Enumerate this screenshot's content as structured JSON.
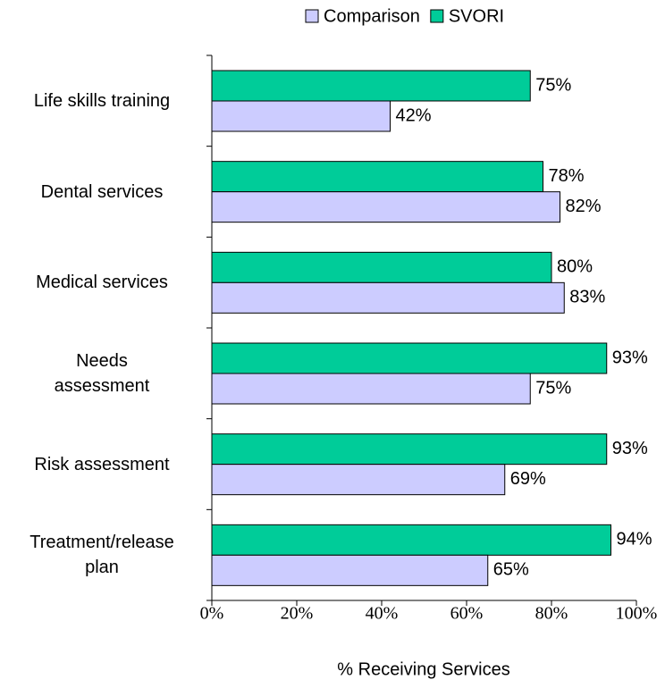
{
  "chart_data": {
    "type": "barh",
    "categories": [
      "Life skills training",
      "Dental services",
      "Medical services",
      "Needs\nassessment",
      "Risk assessment",
      "Treatment/release\nplan"
    ],
    "series": [
      {
        "name": "Comparison",
        "color": "#ccccff",
        "values": [
          42,
          82,
          83,
          75,
          69,
          65
        ],
        "value_labels": [
          "42%",
          "82%",
          "83%",
          "75%",
          "69%",
          "65%"
        ]
      },
      {
        "name": "SVORI",
        "color": "#00cc99",
        "values": [
          75,
          78,
          80,
          93,
          93,
          94
        ],
        "value_labels": [
          "75%",
          "78%",
          "80%",
          "93%",
          "93%",
          "94%"
        ]
      }
    ],
    "xlabel": "% Receiving Services",
    "xlim": [
      0,
      100
    ],
    "xticks": [
      {
        "value": 0,
        "label": "0%"
      },
      {
        "value": 20,
        "label": "20%"
      },
      {
        "value": 40,
        "label": "40%"
      },
      {
        "value": 60,
        "label": "60%"
      },
      {
        "value": 80,
        "label": "80%"
      },
      {
        "value": 100,
        "label": "100%"
      }
    ],
    "legend": "top"
  }
}
